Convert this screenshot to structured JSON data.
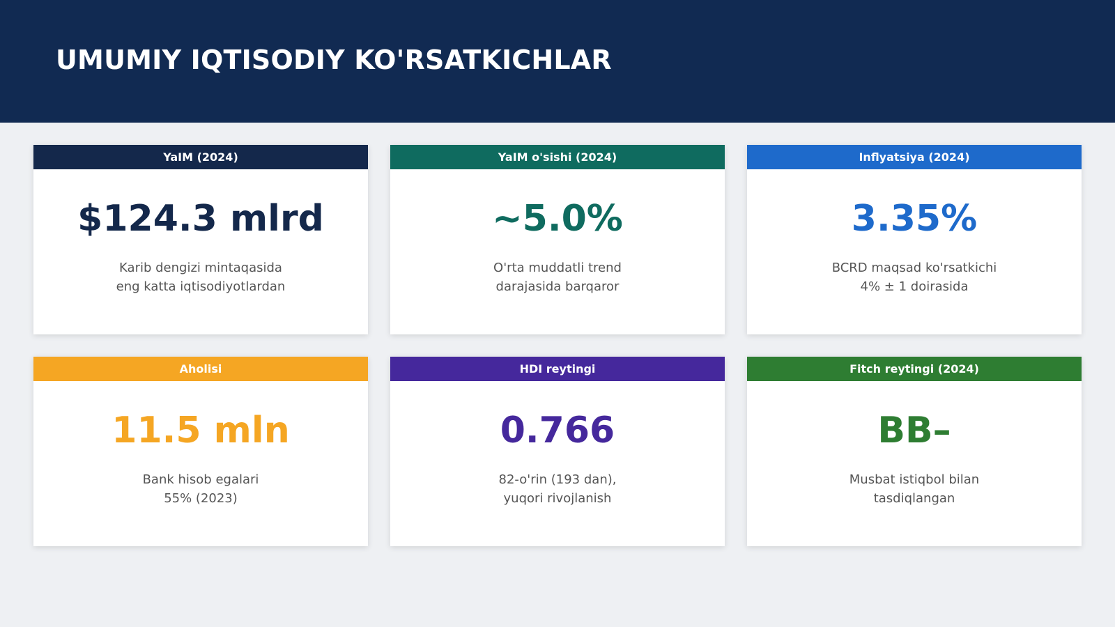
{
  "header": {
    "title": "UMUMIY IQTISODIY KO'RSATKICHLAR"
  },
  "cards": [
    {
      "label": "YaIM (2024)",
      "value": "$124.3 mlrd",
      "description": [
        "Karib dengizi mintaqasida",
        "eng katta iqtisodiyotlardan"
      ],
      "color": "#14284b"
    },
    {
      "label": "YaIM o'sishi (2024)",
      "value": "~5.0%",
      "description": [
        "O'rta muddatli trend",
        "darajasida barqaror"
      ],
      "color": "#0f6b5f"
    },
    {
      "label": "Inflyatsiya (2024)",
      "value": "3.35%",
      "description": [
        "BCRD maqsad ko'rsatkichi",
        "4% ± 1 doirasida"
      ],
      "color": "#1e6acb"
    },
    {
      "label": "Aholisi",
      "value": "11.5 mln",
      "description": [
        "Bank hisob egalari",
        "55% (2023)"
      ],
      "color": "#f5a623"
    },
    {
      "label": "HDI reytingi",
      "value": "0.766",
      "description": [
        "82-o'rin (193 dan),",
        "yuqori rivojlanish"
      ],
      "color": "#45289c"
    },
    {
      "label": "Fitch reytingi (2024)",
      "value": "BB–",
      "description": [
        "Musbat istiqbol bilan",
        "tasdiqlangan"
      ],
      "color": "#2e7d32"
    }
  ]
}
